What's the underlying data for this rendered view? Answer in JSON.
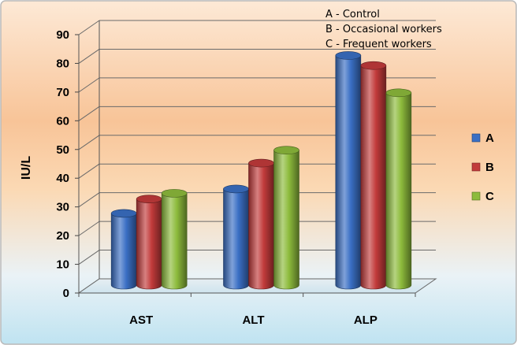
{
  "chart_data": {
    "type": "bar",
    "title": "",
    "xlabel": "",
    "ylabel": "IU/L",
    "ylim": [
      0,
      90
    ],
    "yticks": [
      0,
      10,
      20,
      30,
      40,
      50,
      60,
      70,
      80,
      90
    ],
    "grid": true,
    "three_d": true,
    "categories": [
      "AST",
      "ALT",
      "ALP"
    ],
    "series": [
      {
        "name": "A",
        "color": "#3a6fc4",
        "values": [
          25,
          33.5,
          80
        ]
      },
      {
        "name": "B",
        "color": "#c23b3b",
        "values": [
          30,
          42.5,
          76.5
        ]
      },
      {
        "name": "C",
        "color": "#8dbb3c",
        "values": [
          32,
          47,
          67
        ]
      }
    ],
    "legend_position": "right",
    "annotations": [
      "A - Control",
      "B - Occasional workers",
      "C - Frequent workers"
    ]
  }
}
